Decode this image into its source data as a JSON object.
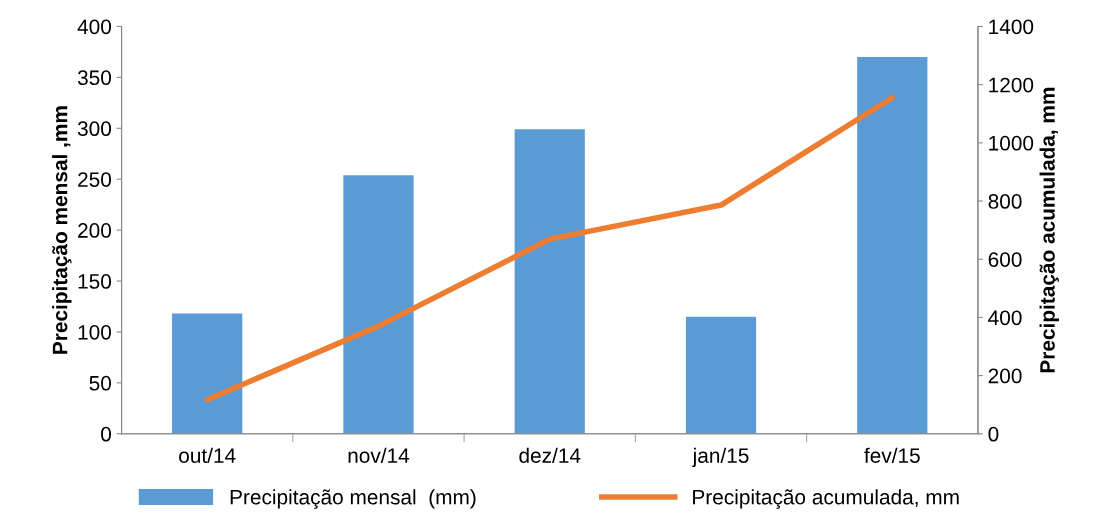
{
  "chart_data": {
    "type": "bar",
    "categories": [
      "out/14",
      "nov/14",
      "dez/14",
      "jan/15",
      "fev/15"
    ],
    "ylabel": "Precipitação mensal ,mm",
    "y2label": "Precipitação acumulada, mm",
    "ylim": [
      0,
      400
    ],
    "yticks": [
      0,
      50,
      100,
      150,
      200,
      250,
      300,
      350,
      400
    ],
    "y2lim": [
      0,
      1400
    ],
    "y2ticks": [
      0,
      200,
      400,
      600,
      800,
      1000,
      1200,
      1400
    ],
    "series": [
      {
        "name": "Precipitação mensal  (mm)",
        "color": "#5b9bd5",
        "values": [
          118,
          254,
          299,
          115,
          370
        ]
      },
      {
        "name": "Precipitação acumulada, mm",
        "type": "line",
        "axis": "y2",
        "color": "#ed7d31",
        "values": [
          117,
          370,
          669,
          786,
          1155
        ]
      }
    ],
    "legend": "bottom",
    "grid": false
  }
}
